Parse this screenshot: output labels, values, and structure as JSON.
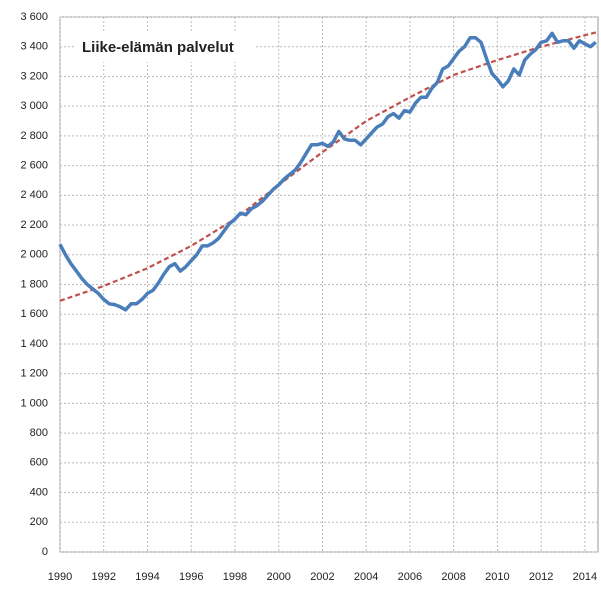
{
  "chart_data": {
    "type": "line",
    "title": "Liike-elämän palvelut",
    "xlim": [
      1990,
      2014.6
    ],
    "xticks": [
      1990,
      1992,
      1994,
      1996,
      1998,
      2000,
      2002,
      2004,
      2006,
      2008,
      2010,
      2012,
      2014
    ],
    "ylim": [
      0,
      3600
    ],
    "yticks": [
      0,
      200,
      400,
      600,
      800,
      {
        "value": 1000,
        "label": "1 000"
      },
      {
        "value": 1200,
        "label": "1 200"
      },
      {
        "value": 1400,
        "label": "1 400"
      },
      {
        "value": 1600,
        "label": "1 600"
      },
      {
        "value": 1800,
        "label": "1 800"
      },
      {
        "value": 2000,
        "label": "2 000"
      },
      {
        "value": 2200,
        "label": "2 200"
      },
      {
        "value": 2400,
        "label": "2 400"
      },
      {
        "value": 2600,
        "label": "2 600"
      },
      {
        "value": 2800,
        "label": "2 800"
      },
      {
        "value": 3000,
        "label": "3 000"
      },
      {
        "value": 3200,
        "label": "3 200"
      },
      {
        "value": 3400,
        "label": "3 400"
      },
      {
        "value": 3600,
        "label": "3 600"
      }
    ],
    "grid": true,
    "series": [
      {
        "color": "#4a7ebb",
        "dash": false,
        "x": [
          1990,
          1990.25,
          1990.5,
          1990.75,
          1991,
          1991.25,
          1991.5,
          1991.75,
          1992,
          1992.25,
          1992.5,
          1992.75,
          1993,
          1993.25,
          1993.5,
          1993.75,
          1994,
          1994.25,
          1994.5,
          1994.75,
          1995,
          1995.25,
          1995.5,
          1995.75,
          1996,
          1996.25,
          1996.5,
          1996.75,
          1997,
          1997.25,
          1997.5,
          1997.75,
          1998,
          1998.25,
          1998.5,
          1998.75,
          1999,
          1999.25,
          1999.5,
          1999.75,
          2000,
          2000.25,
          2000.5,
          2000.75,
          2001,
          2001.25,
          2001.5,
          2001.75,
          2002,
          2002.25,
          2002.5,
          2002.75,
          2003,
          2003.25,
          2003.5,
          2003.75,
          2004,
          2004.25,
          2004.5,
          2004.75,
          2005,
          2005.25,
          2005.5,
          2005.75,
          2006,
          2006.25,
          2006.5,
          2006.75,
          2007,
          2007.25,
          2007.5,
          2007.75,
          2008,
          2008.25,
          2008.5,
          2008.75,
          2009,
          2009.25,
          2009.5,
          2009.75,
          2010,
          2010.25,
          2010.5,
          2010.75,
          2011,
          2011.25,
          2011.5,
          2011.75,
          2012,
          2012.25,
          2012.5,
          2012.75,
          2013,
          2013.25,
          2013.5,
          2013.75,
          2014,
          2014.25,
          2014.5
        ],
        "values": [
          2070,
          2000,
          1940,
          1890,
          1840,
          1800,
          1770,
          1740,
          1700,
          1670,
          1665,
          1650,
          1630,
          1670,
          1670,
          1700,
          1740,
          1760,
          1810,
          1870,
          1920,
          1940,
          1890,
          1920,
          1960,
          2000,
          2060,
          2060,
          2080,
          2110,
          2160,
          2210,
          2240,
          2280,
          2270,
          2310,
          2330,
          2360,
          2400,
          2440,
          2470,
          2510,
          2540,
          2570,
          2620,
          2680,
          2740,
          2740,
          2750,
          2730,
          2760,
          2830,
          2780,
          2770,
          2770,
          2740,
          2780,
          2820,
          2860,
          2880,
          2930,
          2950,
          2920,
          2970,
          2960,
          3020,
          3060,
          3060,
          3120,
          3160,
          3250,
          3270,
          3320,
          3370,
          3400,
          3460,
          3460,
          3430,
          3320,
          3220,
          3180,
          3130,
          3170,
          3250,
          3210,
          3310,
          3350,
          3380,
          3430,
          3440,
          3490,
          3430,
          3440,
          3440,
          3390,
          3440,
          3420,
          3400,
          3430
        ]
      },
      {
        "color": "#c0504d",
        "dash": true,
        "x": [
          1990,
          1992,
          1994,
          1996,
          1998,
          2000,
          2002,
          2004,
          2006,
          2008,
          2010,
          2012,
          2014.6
        ],
        "values": [
          1690,
          1790,
          1910,
          2060,
          2240,
          2470,
          2690,
          2900,
          3060,
          3210,
          3310,
          3400,
          3500
        ]
      }
    ]
  }
}
